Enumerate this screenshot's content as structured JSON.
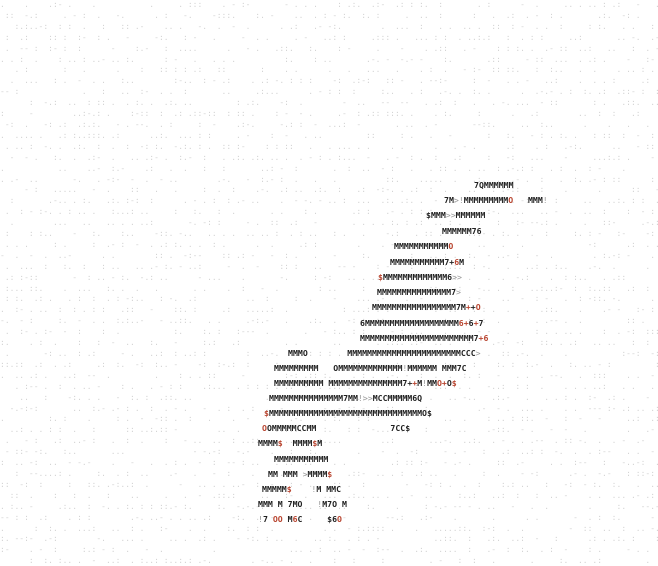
{
  "art": {
    "description_free": true,
    "accent_color": "#b8442f",
    "ink_color": "#1f1f1f",
    "rows": [
      {
        "t": "7QMMMMMM",
        "x": 0
      },
      {
        "t": "7M>!MMMMMMMMMO   MMM!",
        "x": 0
      },
      {
        "t": "$MMM>>MMMMMM",
        "x": 0
      },
      {
        "t": "MMMMMM76",
        "x": 0
      },
      {
        "t": "MMMMMMMMMMMO",
        "x": 0
      },
      {
        "t": "MMMMMMMMMMM7+6M",
        "x": 0
      },
      {
        "t": "$MMMMMMMMMMMMM6>>",
        "x": 0
      },
      {
        "t": "MMMMMMMMMMMMMMM7>",
        "x": 0
      },
      {
        "t": "MMMMMMMMMMMMMMMMM7M++O",
        "x": 0
      },
      {
        "t": "6MMMMMMMMMMMMMMMMMMM6+6+7",
        "x": 0
      },
      {
        "t": "MMMMMMMMMMMMMMMMMMMMMMM7+6",
        "x": 0
      },
      {
        "t": "MMMO        MMMMMMMMMMMMMMMMMMMMMMMCCC>",
        "x": 0
      },
      {
        "t": "MMMMMMMMM   OMMMMMMMMMMMMM!MMMMMM MMM7C",
        "x": 0
      },
      {
        "t": "MMMMMMMMMM MMMMMMMMMMMMMMM7++M!MMO+O$",
        "x": 0
      },
      {
        "t": "MMMMMMMMMMMMMMM7MM!>>MCCMMMMM6Q",
        "x": 0
      },
      {
        "t": "$MMMMMMMMMMMMMMMMMMMMMMMMMMMMMMMO$",
        "x": 0
      },
      {
        "t": "OOMMMMMCCMM               7CC$",
        "x": 0
      },
      {
        "t": "MMMM$  MMMM$M",
        "x": 0
      },
      {
        "t": "MMMMMMMMMMM",
        "x": 0
      },
      {
        "t": "MM MMM >MMMM$",
        "x": 0
      },
      {
        "t": "MMMMM$    !M MMC",
        "x": 0
      },
      {
        "t": "MMM M 7MO   !M7O M",
        "x": 0
      },
      {
        "t": "!7 OO M6C     $6O",
        "x": 0
      }
    ]
  }
}
